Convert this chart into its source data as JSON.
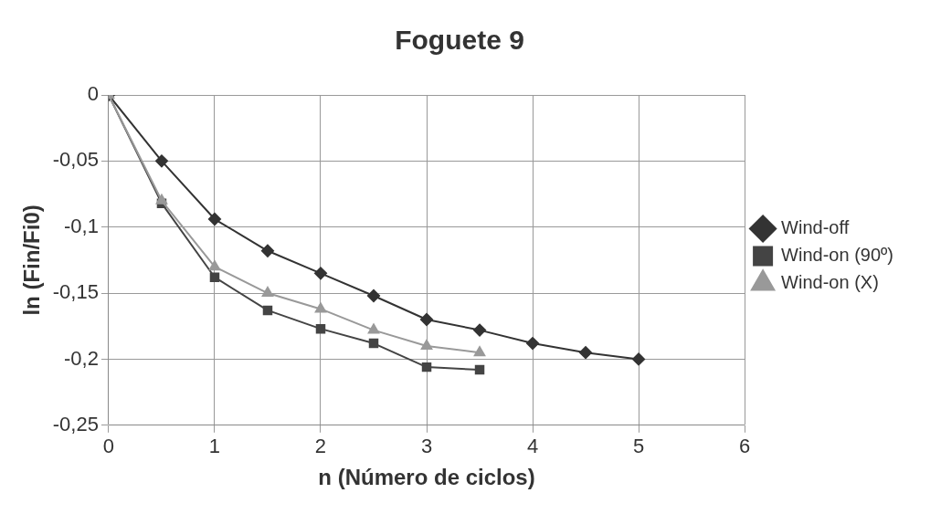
{
  "chart_data": {
    "type": "line",
    "title": "Foguete 9",
    "xlabel": "n (Número de ciclos)",
    "ylabel": "ln (Fin/Fi0)",
    "xlim": [
      0,
      6
    ],
    "xticks": [
      0,
      1,
      2,
      3,
      4,
      5,
      6
    ],
    "ylim": [
      -0.25,
      0
    ],
    "yticks": [
      {
        "value": 0,
        "label": "0"
      },
      {
        "value": -0.05,
        "label": "-0,05"
      },
      {
        "value": -0.1,
        "label": "-0,1"
      },
      {
        "value": -0.15,
        "label": "-0,15"
      },
      {
        "value": -0.2,
        "label": "-0,2"
      },
      {
        "value": -0.25,
        "label": "-0,25"
      }
    ],
    "grid": true,
    "legend": "right",
    "series": [
      {
        "name": "Wind-off",
        "color": "#333333",
        "marker": "diamond",
        "x": [
          0,
          0.5,
          1,
          1.5,
          2,
          2.5,
          3,
          3.5,
          4,
          4.5,
          5
        ],
        "values": [
          0,
          -0.05,
          -0.094,
          -0.118,
          -0.135,
          -0.152,
          -0.17,
          -0.178,
          -0.188,
          -0.195,
          -0.2
        ]
      },
      {
        "name": "Wind-on (90º)",
        "color": "#444444",
        "marker": "square",
        "x": [
          0,
          0.5,
          1,
          1.5,
          2,
          2.5,
          3,
          3.5
        ],
        "values": [
          0,
          -0.082,
          -0.138,
          -0.163,
          -0.177,
          -0.188,
          -0.206,
          -0.208
        ]
      },
      {
        "name": "Wind-on (X)",
        "color": "#999999",
        "marker": "triangle",
        "x": [
          0,
          0.5,
          1,
          1.5,
          2,
          2.5,
          3,
          3.5
        ],
        "values": [
          0,
          -0.08,
          -0.13,
          -0.15,
          -0.162,
          -0.178,
          -0.19,
          -0.195
        ]
      }
    ]
  }
}
